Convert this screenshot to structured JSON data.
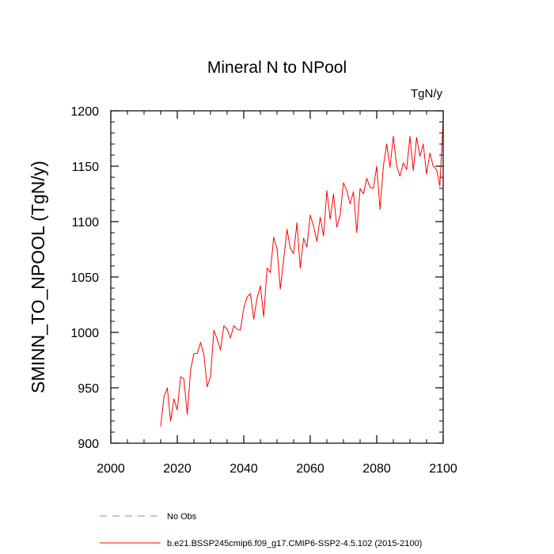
{
  "chart_data": {
    "type": "line",
    "title": "Mineral N to NPool",
    "units": "TgN/y",
    "ylabel": "SMINN_TO_NPOOL  (TgN/y)",
    "xlabel": "",
    "xlim": [
      2000,
      2100
    ],
    "ylim": [
      900,
      1200
    ],
    "x_ticks": [
      2000,
      2020,
      2040,
      2060,
      2080,
      2100
    ],
    "y_ticks": [
      900,
      950,
      1000,
      1050,
      1100,
      1150,
      1200
    ],
    "x_minor_step": 5,
    "y_minor_step": 10,
    "series": [
      {
        "name": "b.e21.BSSP245cmip6.f09_g17.CMIP6-SSP2-4.5.102 (2015-2100)",
        "color": "#ff0000",
        "style": "solid",
        "x": [
          2015,
          2016,
          2017,
          2018,
          2019,
          2020,
          2021,
          2022,
          2023,
          2024,
          2025,
          2026,
          2027,
          2028,
          2029,
          2030,
          2031,
          2032,
          2033,
          2034,
          2035,
          2036,
          2037,
          2038,
          2039,
          2040,
          2041,
          2042,
          2043,
          2044,
          2045,
          2046,
          2047,
          2048,
          2049,
          2050,
          2051,
          2052,
          2053,
          2054,
          2055,
          2056,
          2057,
          2058,
          2059,
          2060,
          2061,
          2062,
          2063,
          2064,
          2065,
          2066,
          2067,
          2068,
          2069,
          2070,
          2071,
          2072,
          2073,
          2074,
          2075,
          2076,
          2077,
          2078,
          2079,
          2080,
          2081,
          2082,
          2083,
          2084,
          2085,
          2086,
          2087,
          2088,
          2089,
          2090,
          2091,
          2092,
          2093,
          2094,
          2095,
          2096,
          2097,
          2098,
          2099,
          2100
        ],
        "values": [
          915,
          942,
          950,
          920,
          940,
          930,
          960,
          958,
          926,
          966,
          981,
          981,
          991,
          980,
          951,
          960,
          1002,
          994,
          984,
          1006,
          1003,
          995,
          1006,
          1003,
          1002,
          1022,
          1032,
          1035,
          1012,
          1031,
          1042,
          1014,
          1058,
          1054,
          1086,
          1076,
          1039,
          1066,
          1093,
          1076,
          1071,
          1099,
          1058,
          1085,
          1077,
          1106,
          1096,
          1082,
          1104,
          1087,
          1128,
          1102,
          1125,
          1095,
          1106,
          1135,
          1128,
          1116,
          1127,
          1090,
          1130,
          1125,
          1139,
          1131,
          1130,
          1150,
          1111,
          1150,
          1170,
          1149,
          1177,
          1150,
          1141,
          1153,
          1147,
          1177,
          1146,
          1176,
          1159,
          1170,
          1143,
          1162,
          1150,
          1147,
          1132,
          1192
        ]
      },
      {
        "name": "No Obs",
        "color": "#8080ff",
        "style": "dashed",
        "x": [],
        "values": []
      }
    ],
    "legend_position": "bottom-left"
  }
}
